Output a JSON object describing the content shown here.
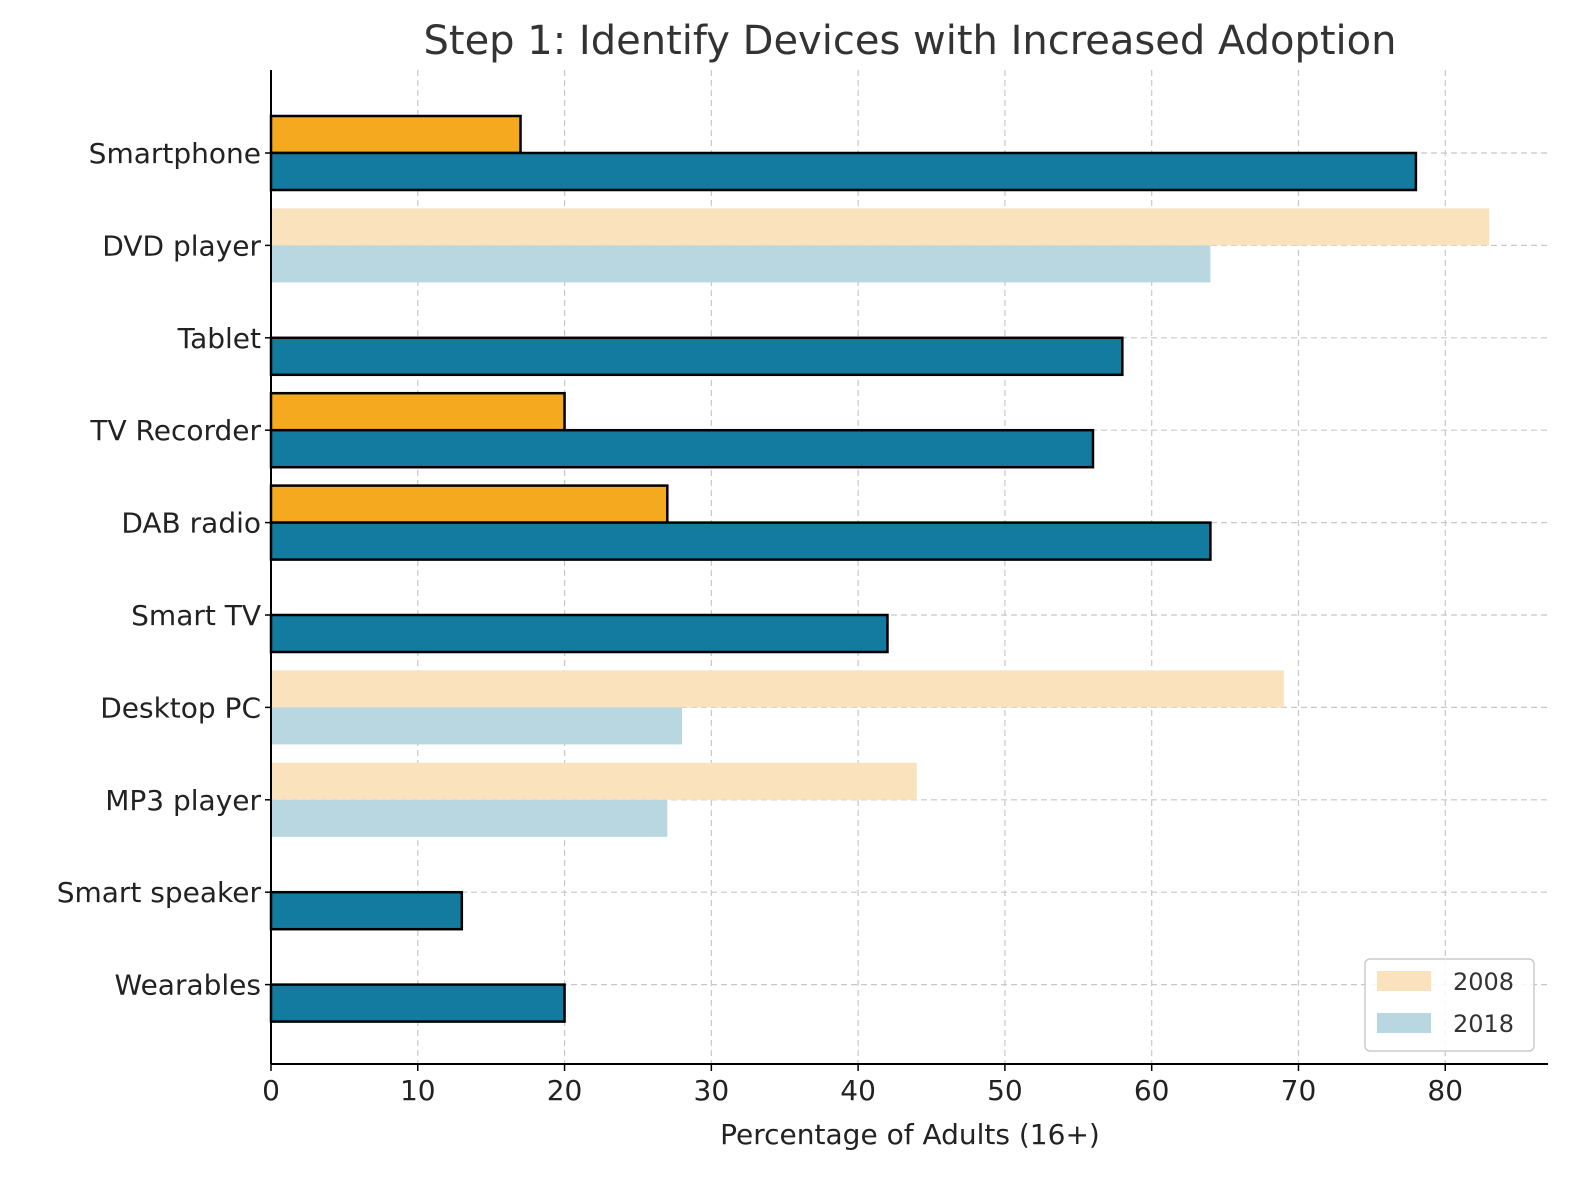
{
  "chart_data": {
    "type": "bar",
    "orientation": "horizontal",
    "title": "Step 1: Identify Devices with Increased Adoption",
    "xlabel": "Percentage of Adults (16+)",
    "ylabel": "",
    "xlim": [
      0,
      87
    ],
    "xticks": [
      0,
      10,
      20,
      30,
      40,
      50,
      60,
      70,
      80
    ],
    "grid": true,
    "legend_position": "bottom-right",
    "categories": [
      "Smartphone",
      "DVD player",
      "Tablet",
      "TV Recorder",
      "DAB radio",
      "Smart TV",
      "Desktop PC",
      "MP3 player",
      "Smart speaker",
      "Wearables"
    ],
    "highlighted": [
      true,
      false,
      true,
      true,
      true,
      true,
      false,
      false,
      true,
      true
    ],
    "series": [
      {
        "name": "2008",
        "values": [
          17,
          83,
          0,
          20,
          27,
          0,
          69,
          44,
          0,
          0
        ],
        "color": "#F5A91F",
        "faded_color": "#FAE3BC"
      },
      {
        "name": "2018",
        "values": [
          78,
          64,
          58,
          56,
          64,
          42,
          28,
          27,
          13,
          20
        ],
        "color": "#137BA0",
        "faded_color": "#B8D7E0"
      }
    ]
  }
}
